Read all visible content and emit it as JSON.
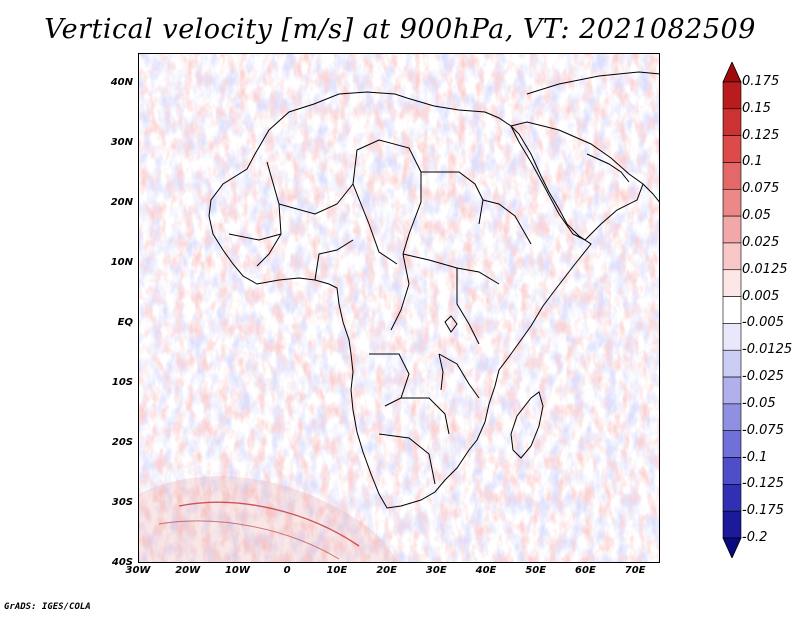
{
  "title": "Vertical velocity [m/s] at 900hPa, VT: 2021082509",
  "credit": "GrADS: IGES/COLA",
  "map": {
    "variable": "Vertical velocity",
    "units": "m/s",
    "level": "900hPa",
    "valid_time": "2021082509",
    "lat_labels": [
      "40N",
      "30N",
      "20N",
      "10N",
      "EQ",
      "10S",
      "20S",
      "30S",
      "40S"
    ],
    "lon_labels": [
      "30W",
      "20W",
      "10W",
      "0",
      "10E",
      "20E",
      "30E",
      "40E",
      "50E",
      "60E",
      "70E"
    ],
    "lat_values": [
      40,
      30,
      20,
      10,
      0,
      -10,
      -20,
      -30,
      -40
    ],
    "lon_values": [
      -30,
      -20,
      -10,
      0,
      10,
      20,
      30,
      40,
      50,
      60,
      70
    ],
    "lat_range": [
      -40,
      45
    ],
    "lon_range": [
      -30,
      75
    ]
  },
  "colorbar": {
    "labels": [
      "0.175",
      "0.15",
      "0.125",
      "0.1",
      "0.075",
      "0.05",
      "0.025",
      "0.0125",
      "0.005",
      "-0.005",
      "-0.0125",
      "-0.025",
      "-0.05",
      "-0.075",
      "-0.1",
      "-0.125",
      "-0.175",
      "-0.2"
    ],
    "colors": [
      "#a00a0a",
      "#b81c1c",
      "#cc3232",
      "#dc4a4a",
      "#e46868",
      "#ec8888",
      "#f2a8a8",
      "#f8c8c8",
      "#fde6e6",
      "#ffffff",
      "#e8e8fa",
      "#cccdf4",
      "#b0b0ec",
      "#9090e2",
      "#7070d8",
      "#4e4ec8",
      "#3030b4",
      "#1a1a9a",
      "#0a0a80"
    ]
  }
}
